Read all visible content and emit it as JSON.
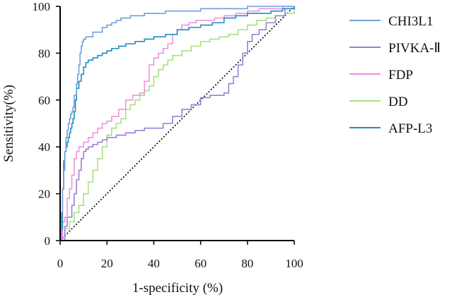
{
  "chart_data": {
    "type": "line",
    "title": "",
    "xlabel": "1-specificity (%)",
    "ylabel": "Sensitivity(%)",
    "xlim": [
      0,
      100
    ],
    "ylim": [
      0,
      100
    ],
    "xticks": [
      0,
      20,
      40,
      60,
      80,
      100
    ],
    "yticks": [
      0,
      20,
      40,
      60,
      80,
      100
    ],
    "grid": false,
    "legend_position": "right",
    "reference_line": {
      "name": "chance",
      "x": [
        0,
        100
      ],
      "y": [
        0,
        100
      ],
      "style": "dotted",
      "color": "#000000"
    },
    "series": [
      {
        "name": "CHI3L1",
        "color": "#6FA0D8",
        "x": [
          0,
          0.5,
          1,
          1.5,
          2,
          2.5,
          3,
          3.5,
          4,
          4.5,
          5,
          5.5,
          6,
          7,
          7.5,
          8,
          8.5,
          9,
          9.5,
          10,
          11,
          12,
          14,
          16,
          18,
          20,
          22,
          24,
          26,
          28,
          30,
          33,
          36,
          40,
          45,
          50,
          60,
          70,
          80,
          90,
          100
        ],
        "y": [
          0,
          12,
          22,
          30,
          38,
          44,
          47,
          50,
          52,
          54,
          55,
          57,
          62,
          67,
          71,
          75,
          80,
          83,
          85,
          86,
          87,
          87,
          89,
          89,
          91,
          92,
          93,
          94,
          95,
          95,
          96,
          96,
          97,
          97,
          98,
          98,
          99,
          99,
          100,
          100,
          100
        ]
      },
      {
        "name": "PIVKA-Ⅱ",
        "color": "#9B7FD6",
        "x": [
          0,
          2,
          3,
          5,
          6,
          7,
          8,
          9,
          10,
          11,
          12,
          14,
          16,
          18,
          20,
          24,
          28,
          32,
          36,
          40,
          44,
          48,
          52,
          56,
          60,
          64,
          68,
          70,
          72,
          74,
          76,
          78,
          80,
          82,
          85,
          88,
          92,
          96,
          100
        ],
        "y": [
          0,
          6,
          10,
          15,
          20,
          26,
          30,
          35,
          38,
          39,
          40,
          41,
          42,
          43,
          44,
          45,
          46,
          47,
          48,
          48,
          50,
          53,
          56,
          58,
          61,
          62,
          62,
          63,
          67,
          70,
          75,
          80,
          85,
          88,
          90,
          93,
          96,
          99,
          100
        ]
      },
      {
        "name": "FDP",
        "color": "#F090E0",
        "x": [
          0,
          1,
          2,
          3,
          4,
          5,
          6,
          7,
          8,
          10,
          12,
          14,
          16,
          18,
          20,
          22,
          25,
          28,
          31,
          34,
          36,
          38,
          40,
          42,
          44,
          46,
          48,
          50,
          52,
          55,
          58,
          62,
          66,
          70,
          75,
          80,
          85,
          90,
          95,
          100
        ],
        "y": [
          0,
          8,
          10,
          18,
          22,
          28,
          35,
          38,
          40,
          42,
          44,
          46,
          48,
          50,
          51,
          53,
          56,
          60,
          62,
          63,
          68,
          75,
          78,
          80,
          82,
          84,
          88,
          90,
          92,
          93,
          94,
          94,
          95,
          96,
          97,
          98,
          99,
          99,
          100,
          100
        ]
      },
      {
        "name": "DD",
        "color": "#A8E080",
        "x": [
          0,
          2,
          4,
          6,
          8,
          10,
          12,
          14,
          16,
          18,
          20,
          22,
          24,
          26,
          28,
          30,
          32,
          34,
          36,
          38,
          40,
          42,
          44,
          46,
          48,
          52,
          56,
          60,
          64,
          68,
          72,
          76,
          80,
          84,
          88,
          92,
          96,
          100
        ],
        "y": [
          0,
          5,
          8,
          12,
          15,
          20,
          25,
          30,
          35,
          40,
          45,
          48,
          50,
          52,
          56,
          58,
          60,
          62,
          64,
          66,
          70,
          73,
          75,
          77,
          79,
          81,
          83,
          85,
          86,
          87,
          88,
          90,
          92,
          94,
          95,
          96,
          97,
          100
        ]
      },
      {
        "name": "AFP-L3",
        "color": "#1F8DC0",
        "x": [
          0,
          0.5,
          1,
          1.5,
          2,
          2.5,
          3,
          3.5,
          4,
          4.5,
          5,
          5.5,
          6,
          6.5,
          7,
          8,
          9,
          10,
          11,
          12,
          14,
          16,
          18,
          20,
          22,
          25,
          28,
          32,
          36,
          40,
          45,
          50,
          55,
          60,
          65,
          70,
          75,
          80,
          85,
          90,
          95,
          100
        ],
        "y": [
          0,
          5,
          22,
          34,
          38,
          40,
          42,
          44,
          46,
          48,
          50,
          52,
          55,
          60,
          65,
          68,
          71,
          74,
          76,
          77,
          78,
          79,
          80,
          81,
          82,
          83,
          84,
          85,
          86,
          87,
          88,
          90,
          91,
          92,
          93,
          95,
          96,
          97,
          97,
          98,
          99,
          100
        ]
      }
    ]
  }
}
